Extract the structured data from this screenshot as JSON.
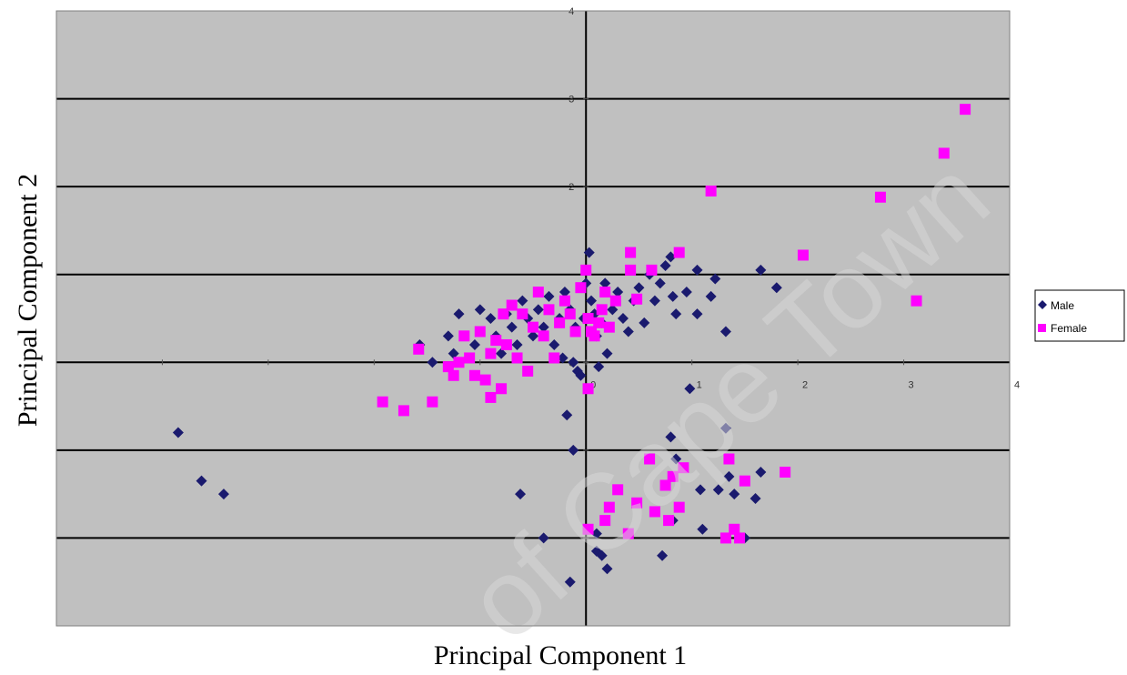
{
  "chart_data": {
    "type": "scatter",
    "xlabel": "Principal Component 1",
    "ylabel": "Principal Component 2",
    "xlim": [
      -5,
      4
    ],
    "ylim": [
      -3,
      4
    ],
    "x_ticks": [
      -5,
      -4,
      -3,
      -2,
      -1,
      0,
      1,
      2,
      3,
      4
    ],
    "x_tick_labels": [
      "",
      "",
      "",
      "",
      "",
      "0",
      "1",
      "2",
      "3",
      "4"
    ],
    "y_ticks": [
      -3,
      -2,
      -1,
      0,
      1,
      2,
      3,
      4
    ],
    "y_tick_labels": [
      "",
      "",
      "",
      "0",
      "",
      "2",
      "3",
      "4"
    ],
    "grid": "horizontal",
    "plot_background": "#c0c0c0",
    "legend_position": "right",
    "watermark": "of Cape Town",
    "series": [
      {
        "name": "Male",
        "marker": "diamond",
        "color": "#1a1a6e",
        "points": [
          [
            -3.85,
            -0.8
          ],
          [
            -3.63,
            -1.35
          ],
          [
            -3.42,
            -1.5
          ],
          [
            -1.57,
            0.2
          ],
          [
            -1.45,
            0.0
          ],
          [
            -1.2,
            0.55
          ],
          [
            -1.3,
            0.3
          ],
          [
            -1.25,
            0.1
          ],
          [
            -1.0,
            0.6
          ],
          [
            -1.05,
            0.2
          ],
          [
            -0.9,
            0.5
          ],
          [
            -0.85,
            0.3
          ],
          [
            -0.8,
            0.1
          ],
          [
            -0.75,
            0.55
          ],
          [
            -0.7,
            0.4
          ],
          [
            -0.65,
            0.2
          ],
          [
            -0.6,
            0.7
          ],
          [
            -0.55,
            0.5
          ],
          [
            -0.5,
            0.3
          ],
          [
            -0.45,
            0.6
          ],
          [
            -0.4,
            0.4
          ],
          [
            -0.35,
            0.75
          ],
          [
            -0.3,
            0.2
          ],
          [
            -0.25,
            0.5
          ],
          [
            -0.22,
            0.05
          ],
          [
            -0.2,
            0.8
          ],
          [
            -0.15,
            0.6
          ],
          [
            -0.12,
            0.0
          ],
          [
            -0.1,
            0.4
          ],
          [
            -0.08,
            -0.1
          ],
          [
            -0.05,
            -0.15
          ],
          [
            -0.02,
            0.5
          ],
          [
            0.0,
            0.9
          ],
          [
            0.03,
            1.25
          ],
          [
            0.05,
            0.7
          ],
          [
            0.08,
            0.55
          ],
          [
            0.1,
            0.3
          ],
          [
            0.12,
            -0.05
          ],
          [
            0.15,
            0.45
          ],
          [
            0.18,
            0.9
          ],
          [
            0.2,
            0.1
          ],
          [
            0.25,
            0.6
          ],
          [
            0.3,
            0.8
          ],
          [
            0.35,
            0.5
          ],
          [
            0.4,
            0.35
          ],
          [
            0.45,
            0.7
          ],
          [
            0.5,
            0.85
          ],
          [
            0.55,
            0.45
          ],
          [
            0.6,
            1.0
          ],
          [
            0.65,
            0.7
          ],
          [
            0.7,
            0.9
          ],
          [
            0.75,
            1.1
          ],
          [
            0.8,
            1.2
          ],
          [
            0.82,
            0.75
          ],
          [
            0.85,
            0.55
          ],
          [
            0.95,
            0.8
          ],
          [
            0.98,
            -0.3
          ],
          [
            1.05,
            0.55
          ],
          [
            1.05,
            1.05
          ],
          [
            1.18,
            0.75
          ],
          [
            1.22,
            0.95
          ],
          [
            1.32,
            0.35
          ],
          [
            1.32,
            -0.75
          ],
          [
            1.65,
            1.05
          ],
          [
            1.8,
            0.85
          ],
          [
            -0.18,
            -0.6
          ],
          [
            -0.12,
            -1.0
          ],
          [
            -0.62,
            -1.5
          ],
          [
            -0.4,
            -2.0
          ],
          [
            -0.15,
            -2.5
          ],
          [
            0.1,
            -2.15
          ],
          [
            0.15,
            -2.2
          ],
          [
            0.2,
            -2.35
          ],
          [
            0.1,
            -1.95
          ],
          [
            0.72,
            -2.2
          ],
          [
            0.8,
            -0.85
          ],
          [
            0.85,
            -1.1
          ],
          [
            0.82,
            -1.8
          ],
          [
            1.08,
            -1.45
          ],
          [
            1.1,
            -1.9
          ],
          [
            1.25,
            -1.45
          ],
          [
            1.35,
            -1.3
          ],
          [
            1.4,
            -1.5
          ],
          [
            1.5,
            -2.0
          ],
          [
            1.6,
            -1.55
          ],
          [
            1.65,
            -1.25
          ]
        ]
      },
      {
        "name": "Female",
        "marker": "square",
        "color": "#ff00ff",
        "points": [
          [
            -1.72,
            -0.55
          ],
          [
            -1.45,
            -0.45
          ],
          [
            -1.58,
            0.15
          ],
          [
            -1.3,
            -0.05
          ],
          [
            -1.25,
            -0.15
          ],
          [
            -1.2,
            0.0
          ],
          [
            -1.15,
            0.3
          ],
          [
            -1.1,
            0.05
          ],
          [
            -1.05,
            -0.15
          ],
          [
            -1.0,
            0.35
          ],
          [
            -0.95,
            -0.2
          ],
          [
            -0.9,
            0.1
          ],
          [
            -0.85,
            0.25
          ],
          [
            -0.8,
            -0.3
          ],
          [
            -0.78,
            0.55
          ],
          [
            -0.75,
            0.2
          ],
          [
            -0.7,
            0.65
          ],
          [
            -0.65,
            0.05
          ],
          [
            -0.6,
            0.55
          ],
          [
            -0.55,
            -0.1
          ],
          [
            -0.5,
            0.4
          ],
          [
            -0.45,
            0.8
          ],
          [
            -0.4,
            0.3
          ],
          [
            -0.35,
            0.6
          ],
          [
            -0.3,
            0.05
          ],
          [
            -0.25,
            0.45
          ],
          [
            -0.2,
            0.7
          ],
          [
            -0.15,
            0.55
          ],
          [
            -0.1,
            0.35
          ],
          [
            -0.05,
            0.85
          ],
          [
            0.0,
            1.05
          ],
          [
            0.02,
            0.5
          ],
          [
            0.05,
            0.35
          ],
          [
            0.08,
            0.3
          ],
          [
            0.12,
            0.45
          ],
          [
            0.15,
            0.6
          ],
          [
            0.18,
            0.8
          ],
          [
            0.22,
            0.4
          ],
          [
            0.28,
            0.7
          ],
          [
            0.42,
            1.05
          ],
          [
            0.42,
            1.25
          ],
          [
            0.48,
            0.72
          ],
          [
            0.62,
            1.05
          ],
          [
            0.88,
            1.25
          ],
          [
            1.18,
            1.95
          ],
          [
            2.05,
            1.22
          ],
          [
            2.78,
            1.88
          ],
          [
            3.12,
            0.7
          ],
          [
            3.38,
            2.38
          ],
          [
            3.58,
            2.88
          ],
          [
            -1.92,
            -0.45
          ],
          [
            -0.9,
            -0.4
          ],
          [
            0.02,
            -0.3
          ],
          [
            0.02,
            -1.9
          ],
          [
            0.18,
            -1.8
          ],
          [
            0.22,
            -1.65
          ],
          [
            0.3,
            -1.45
          ],
          [
            0.4,
            -1.95
          ],
          [
            0.48,
            -1.6
          ],
          [
            0.6,
            -1.1
          ],
          [
            0.65,
            -1.7
          ],
          [
            0.75,
            -1.4
          ],
          [
            0.78,
            -1.8
          ],
          [
            0.82,
            -1.3
          ],
          [
            0.88,
            -1.65
          ],
          [
            0.92,
            -1.2
          ],
          [
            1.35,
            -1.1
          ],
          [
            1.4,
            -1.9
          ],
          [
            1.5,
            -1.35
          ],
          [
            1.88,
            -1.25
          ],
          [
            1.32,
            -2.0
          ],
          [
            1.45,
            -2.0
          ]
        ]
      }
    ]
  }
}
